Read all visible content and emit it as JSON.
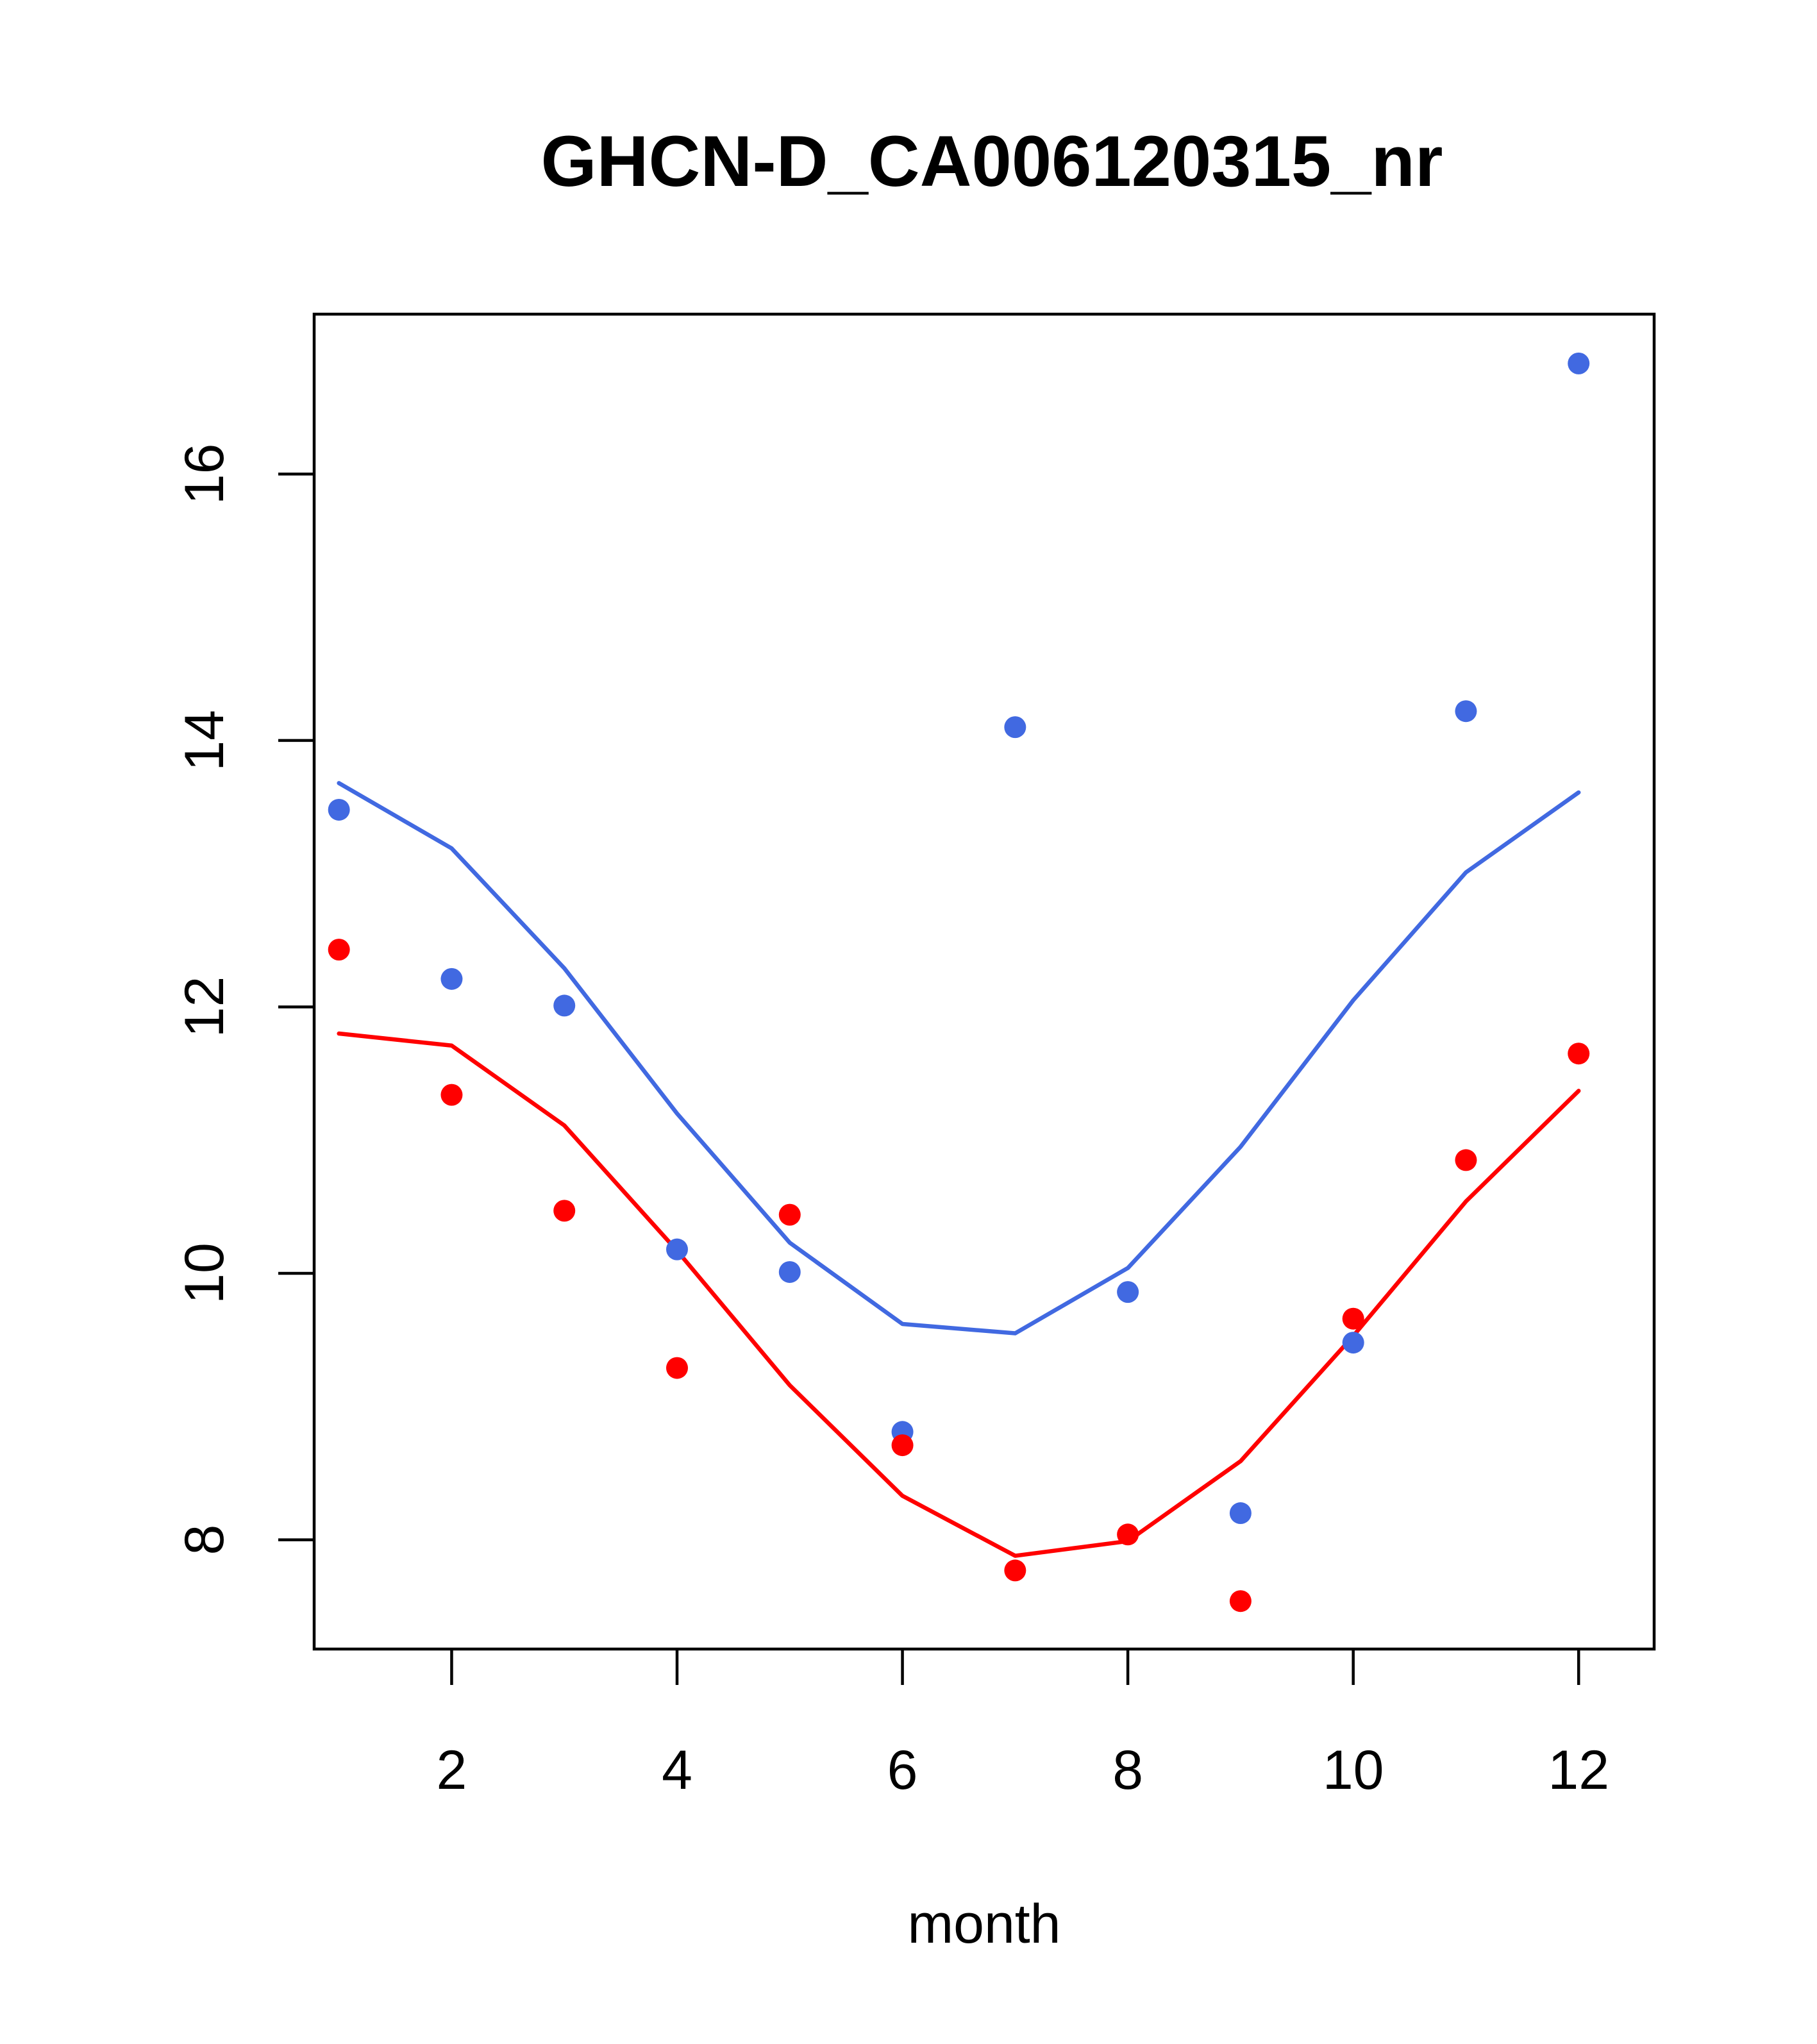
{
  "chart_data": {
    "type": "line",
    "title": "GHCN-D_CA006120315_nr",
    "xlabel": "month",
    "ylabel": "",
    "xlim": [
      0.78,
      12.67
    ],
    "ylim": [
      7.18,
      17.2
    ],
    "xticks": [
      2,
      4,
      6,
      8,
      10,
      12
    ],
    "yticks": [
      8,
      10,
      12,
      14,
      16
    ],
    "x": [
      1,
      2,
      3,
      4,
      5,
      6,
      7,
      8,
      9,
      10,
      11,
      12
    ],
    "series": [
      {
        "name": "blue points",
        "color": "#4169E1",
        "kind": "points",
        "values": [
          13.48,
          12.21,
          12.01,
          10.18,
          10.01,
          8.81,
          14.1,
          9.86,
          8.2,
          9.48,
          14.22,
          16.83
        ]
      },
      {
        "name": "red points",
        "color": "#FF0000",
        "kind": "points",
        "values": [
          12.43,
          11.34,
          10.47,
          9.29,
          10.44,
          8.71,
          7.77,
          8.04,
          7.54,
          9.66,
          10.85,
          11.65
        ]
      },
      {
        "name": "blue line",
        "color": "#4169E1",
        "kind": "line",
        "values": [
          13.68,
          13.19,
          12.29,
          11.2,
          10.23,
          9.62,
          9.55,
          10.04,
          10.95,
          12.05,
          13.01,
          13.61
        ]
      },
      {
        "name": "red line",
        "color": "#FF0000",
        "kind": "line",
        "values": [
          11.8,
          11.71,
          11.11,
          10.17,
          9.16,
          8.33,
          7.88,
          7.99,
          8.59,
          9.53,
          10.54,
          11.37
        ]
      }
    ]
  }
}
